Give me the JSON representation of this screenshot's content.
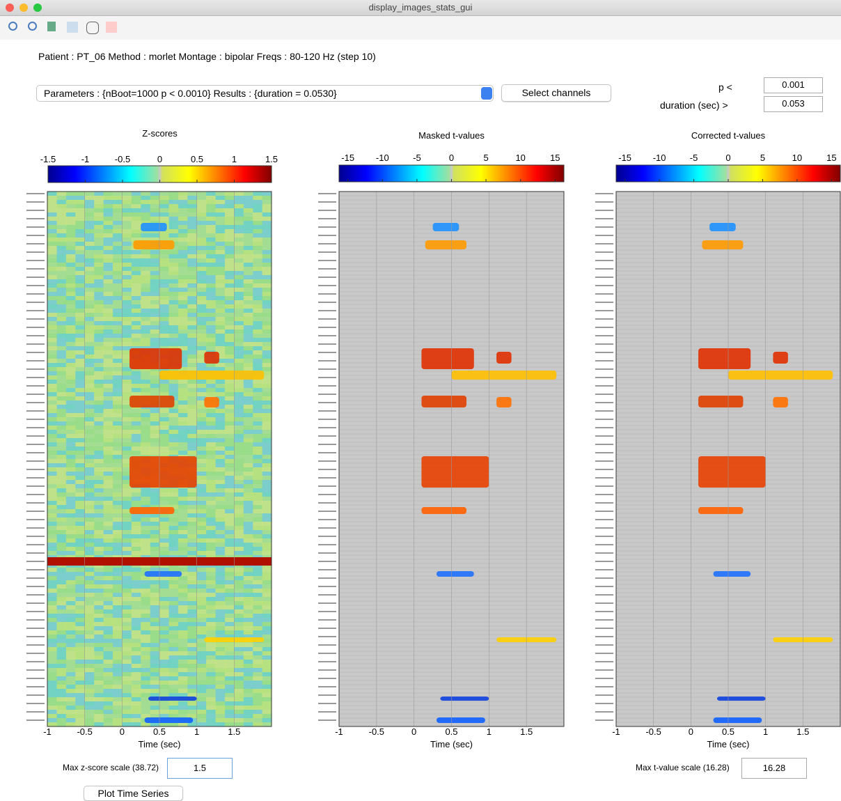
{
  "window": {
    "title": "display_images_stats_gui"
  },
  "header": "Patient : PT_06  Method : morlet  Montage : bipolar   Freqs : 80-120 Hz (step 10)",
  "controls": {
    "dropdown": "Parameters : {nBoot=1000   p < 0.0010} Results : {duration = 0.0530}",
    "select_button": "Select channels",
    "p_label": "p <",
    "p_value": "0.001",
    "duration_label": "duration (sec) >",
    "duration_value": "0.053"
  },
  "panels": [
    {
      "title": "Z-scores",
      "clim": [
        -1.5,
        1.5
      ],
      "cticks": [
        -1.5,
        -1,
        -0.5,
        0,
        0.5,
        1,
        1.5
      ],
      "xlim": [
        -1,
        2
      ],
      "xticks": [
        -1,
        -0.5,
        0,
        0.5,
        1,
        1.5
      ],
      "xlabel": "Time (sec)"
    },
    {
      "title": "Masked t-values",
      "clim": [
        -16.28,
        16.28
      ],
      "cticks": [
        -15,
        -10,
        -5,
        0,
        5,
        10,
        15
      ],
      "xlim": [
        -1,
        2
      ],
      "xticks": [
        -1,
        -0.5,
        0,
        0.5,
        1,
        1.5
      ],
      "xlabel": "Time (sec)"
    },
    {
      "title": "Corrected t-values",
      "clim": [
        -16.28,
        16.28
      ],
      "cticks": [
        -15,
        -10,
        -5,
        0,
        5,
        10,
        15
      ],
      "xlim": [
        -1,
        2
      ],
      "xticks": [
        -1,
        -0.5,
        0,
        0.5,
        1,
        1.5
      ],
      "xlabel": "Time (sec)"
    }
  ],
  "bottom": {
    "zscale_label": "Max z-score scale (38.72)",
    "zscale_value": "1.5",
    "plot_button": "Plot Time Series",
    "tscale_label": "Max t-value scale (16.28)",
    "tscale_value": "16.28"
  }
}
